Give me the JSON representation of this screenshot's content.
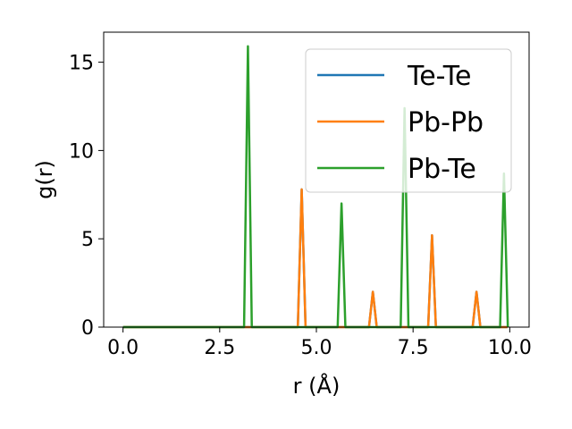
{
  "chart_data": {
    "type": "line",
    "title": "",
    "xlabel": "r (Å)",
    "ylabel": "g(r)",
    "xlim": [
      -0.5,
      10.5
    ],
    "ylim": [
      0,
      16.7
    ],
    "xticks": [
      0.0,
      2.5,
      5.0,
      7.5,
      10.0
    ],
    "xtick_labels": [
      "0.0",
      "2.5",
      "5.0",
      "7.5",
      "10.0"
    ],
    "yticks": [
      0,
      5,
      10,
      15
    ],
    "ytick_labels": [
      "0",
      "5",
      "10",
      "15"
    ],
    "grid": false,
    "legend_position": "top-right",
    "series": [
      {
        "name": "Te-Te",
        "color": "#1f77b4",
        "x": [
          0.0,
          4.52,
          4.62,
          4.72,
          6.36,
          6.46,
          6.56,
          7.89,
          7.99,
          8.09,
          9.04,
          9.14,
          9.24,
          9.94
        ],
        "y": [
          0,
          0,
          7.8,
          0,
          0,
          2.0,
          0,
          0,
          5.2,
          0,
          0,
          2.0,
          0,
          0
        ]
      },
      {
        "name": "Pb-Pb",
        "color": "#ff7f0e",
        "x": [
          0.0,
          4.52,
          4.62,
          4.72,
          6.36,
          6.46,
          6.56,
          7.89,
          7.99,
          8.09,
          9.04,
          9.14,
          9.24,
          9.94
        ],
        "y": [
          0,
          0,
          7.8,
          0,
          0,
          2.0,
          0,
          0,
          5.2,
          0,
          0,
          2.0,
          0,
          0
        ]
      },
      {
        "name": "Pb-Te",
        "color": "#2ca02c",
        "x": [
          0.0,
          3.13,
          3.23,
          3.33,
          5.55,
          5.65,
          5.75,
          7.18,
          7.28,
          7.38,
          9.75,
          9.85,
          9.95
        ],
        "y": [
          0,
          0,
          15.9,
          0,
          0,
          7.0,
          0,
          0,
          12.4,
          0,
          0,
          8.7,
          0
        ]
      }
    ]
  }
}
